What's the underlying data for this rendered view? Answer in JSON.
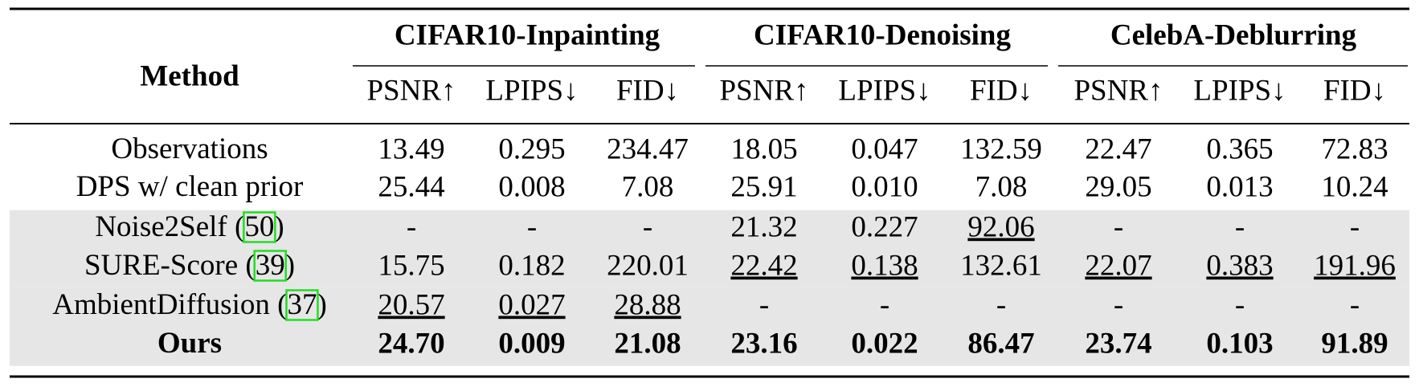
{
  "table": {
    "method_header": "Method",
    "groups": [
      "CIFAR10-Inpainting",
      "CIFAR10-Denoising",
      "CelebA-Deblurring"
    ],
    "subheaders": [
      "PSNR↑",
      "LPIPS↓",
      "FID↓",
      "PSNR↑",
      "LPIPS↓",
      "FID↓",
      "PSNR↑",
      "LPIPS↓",
      "FID↓"
    ],
    "rows": [
      {
        "method": {
          "prefix": "Observations"
        },
        "cells": [
          "13.49",
          "0.295",
          "234.47",
          "18.05",
          "0.047",
          "132.59",
          "22.47",
          "0.365",
          "72.83"
        ],
        "shaded": false,
        "bold": false,
        "underline": [
          false,
          false,
          false,
          false,
          false,
          false,
          false,
          false,
          false
        ]
      },
      {
        "method": {
          "prefix": "DPS w/ clean prior"
        },
        "cells": [
          "25.44",
          "0.008",
          "7.08",
          "25.91",
          "0.010",
          "7.08",
          "29.05",
          "0.013",
          "10.24"
        ],
        "shaded": false,
        "bold": false,
        "underline": [
          false,
          false,
          false,
          false,
          false,
          false,
          false,
          false,
          false
        ]
      },
      {
        "method": {
          "prefix": "Noise2Self (",
          "ref": "50",
          "suffix": ")"
        },
        "cells": [
          "-",
          "-",
          "-",
          "21.32",
          "0.227",
          "92.06",
          "-",
          "-",
          "-"
        ],
        "shaded": true,
        "bold": false,
        "underline": [
          false,
          false,
          false,
          false,
          false,
          true,
          false,
          false,
          false
        ]
      },
      {
        "method": {
          "prefix": "SURE-Score (",
          "ref": "39",
          "suffix": ")"
        },
        "cells": [
          "15.75",
          "0.182",
          "220.01",
          "22.42",
          "0.138",
          "132.61",
          "22.07",
          "0.383",
          "191.96"
        ],
        "shaded": true,
        "bold": false,
        "underline": [
          false,
          false,
          false,
          true,
          true,
          false,
          true,
          true,
          true
        ]
      },
      {
        "method": {
          "prefix": "AmbientDiffusion (",
          "ref": "37",
          "suffix": ")"
        },
        "cells": [
          "20.57",
          "0.027",
          "28.88",
          "-",
          "-",
          "-",
          "-",
          "-",
          "-"
        ],
        "shaded": true,
        "bold": false,
        "underline": [
          true,
          true,
          true,
          false,
          false,
          false,
          false,
          false,
          false
        ]
      },
      {
        "method": {
          "prefix": "Ours"
        },
        "cells": [
          "24.70",
          "0.009",
          "21.08",
          "23.16",
          "0.022",
          "86.47",
          "23.74",
          "0.103",
          "91.89"
        ],
        "shaded": true,
        "bold": true,
        "underline": [
          false,
          false,
          false,
          false,
          false,
          false,
          false,
          false,
          false
        ]
      }
    ]
  }
}
